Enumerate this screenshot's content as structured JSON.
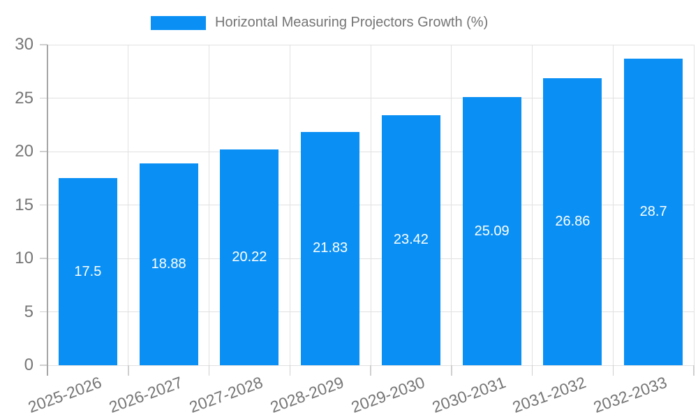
{
  "chart_data": {
    "type": "bar",
    "title": "Horizontal Measuring Projectors Growth (%)",
    "categories": [
      "2025-2026",
      "2026-2027",
      "2027-2028",
      "2028-2029",
      "2029-2030",
      "2030-2031",
      "2031-2032",
      "2032-2033"
    ],
    "values": [
      17.5,
      18.88,
      20.22,
      21.83,
      23.42,
      25.09,
      26.86,
      28.7
    ],
    "xlabel": "",
    "ylabel": "",
    "ylim": [
      0,
      30
    ],
    "yticks": [
      0,
      5,
      10,
      15,
      20,
      25,
      30
    ],
    "grid": true,
    "legend_position": "top-center",
    "bar_color": "#0a90f5",
    "value_label_color": "#ffffff",
    "axis_text_color": "#757575",
    "gridline_color": "#e1e1e1",
    "axis_line_color": "#a6a6a6",
    "tick_color": "#cfcfcf",
    "background_color": "#ffffff"
  }
}
